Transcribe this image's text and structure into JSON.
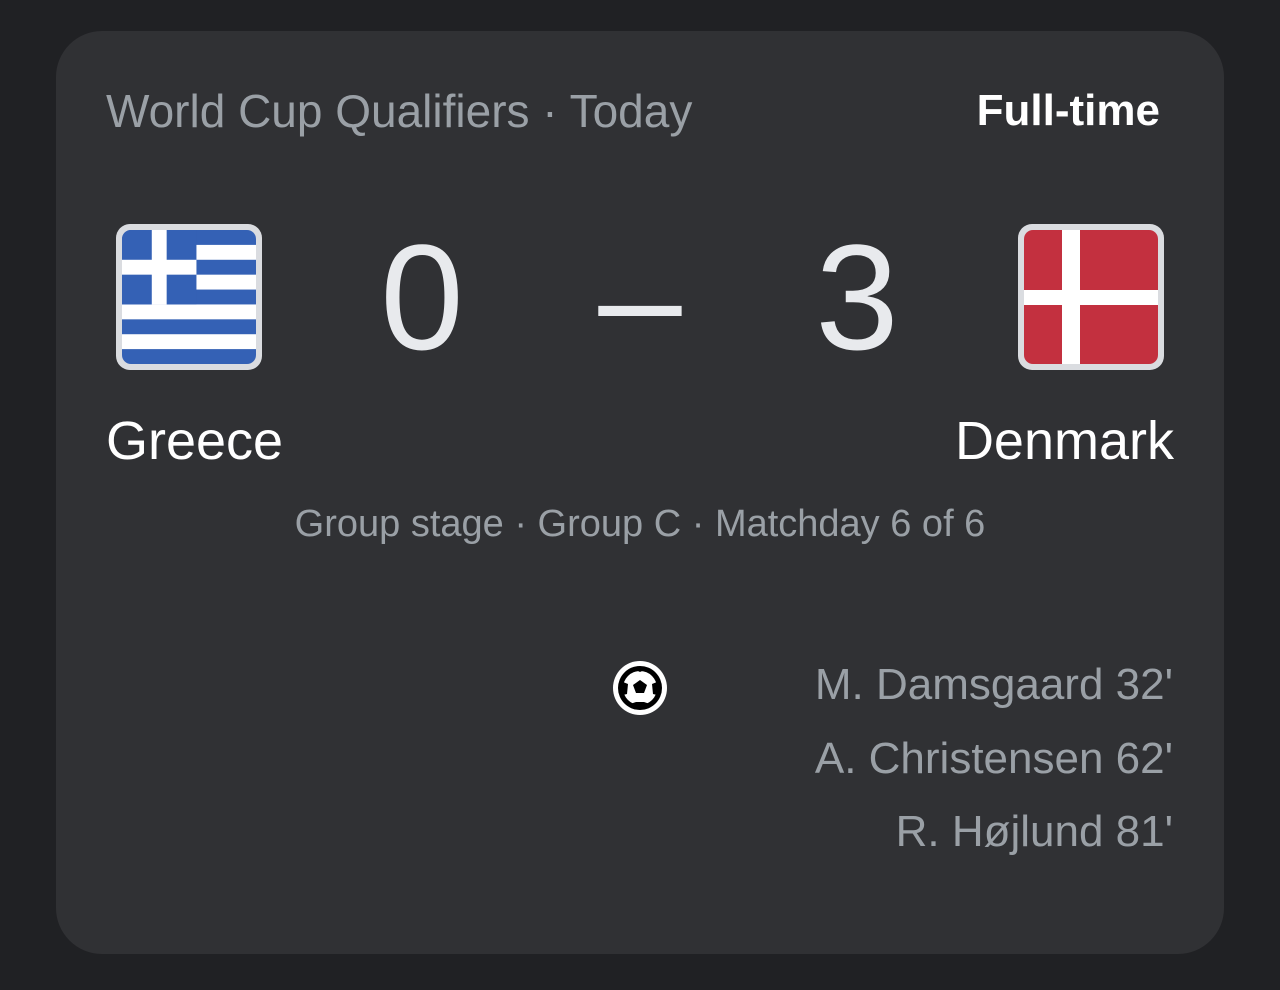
{
  "header": {
    "competition": "World Cup Qualifiers · Today",
    "status": "Full-time"
  },
  "match": {
    "home": {
      "name": "Greece",
      "score": "0",
      "flag": "greece-flag"
    },
    "away": {
      "name": "Denmark",
      "score": "3",
      "flag": "denmark-flag"
    },
    "separator": "–",
    "stage": "Group stage · Group C · Matchday 6 of 6"
  },
  "goals": {
    "icon": "soccer-ball-icon",
    "away_scorers": [
      "M. Damsgaard 32'",
      "A. Christensen 62'",
      "R. Højlund 81'"
    ]
  },
  "colors": {
    "background": "#202124",
    "card": "#303134",
    "greece_blue": "#3461b5",
    "denmark_red": "#c3303f"
  }
}
